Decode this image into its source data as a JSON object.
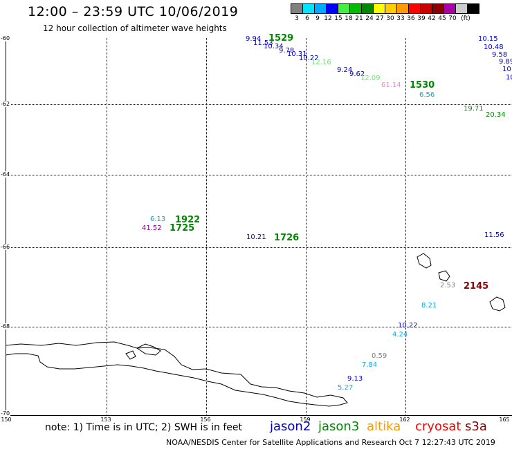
{
  "title": "12:00 – 23:59 UTC 10/06/2019",
  "subtitle": "12 hour collection of altimeter wave heights",
  "legend": {
    "colors": [
      "#808080",
      "#00e5ff",
      "#00aaff",
      "#0000ff",
      "#44ee44",
      "#00bb00",
      "#008800",
      "#ffff00",
      "#ffcc00",
      "#ff9900",
      "#ff0000",
      "#cc0000",
      "#880000",
      "#aa00aa",
      "#cccccc",
      "#000000"
    ],
    "labels": [
      "3",
      "6",
      "9",
      "12",
      "15",
      "18",
      "21",
      "24",
      "27",
      "30",
      "33",
      "36",
      "39",
      "42",
      "45",
      "70",
      "(ft)"
    ]
  },
  "axes": {
    "lat_labels": [
      "-60",
      "-62",
      "-64",
      "-66",
      "-68",
      "-70"
    ],
    "lon_labels": [
      "150",
      "153",
      "156",
      "159",
      "162",
      "165"
    ]
  },
  "observations": [
    {
      "value": "9.94",
      "color": "#0000cc"
    },
    {
      "value": "11.53",
      "color": "#0000cc"
    },
    {
      "value": "10.34",
      "color": "#0000cc"
    },
    {
      "value": "9.78",
      "color": "#0000cc"
    },
    {
      "value": "10.31",
      "color": "#0000cc"
    },
    {
      "value": "10.22",
      "color": "#0000cc"
    },
    {
      "value": "12.16",
      "color": "#66ee66"
    },
    {
      "value": "9.24",
      "color": "#0000cc"
    },
    {
      "value": "9.62",
      "color": "#0000cc"
    },
    {
      "value": "12.09",
      "color": "#66ee66"
    },
    {
      "value": "61.14",
      "color": "#ee88cc"
    },
    {
      "value": "6.56",
      "color": "#00aacc"
    },
    {
      "value": "19.71",
      "color": "#008800"
    },
    {
      "value": "20.34",
      "color": "#008800"
    },
    {
      "value": "10.15",
      "color": "#0000cc"
    },
    {
      "value": "10.48",
      "color": "#0000cc"
    },
    {
      "value": "9.58",
      "color": "#0000cc"
    },
    {
      "value": "9.89",
      "color": "#0000cc"
    },
    {
      "value": "10",
      "color": "#0000cc"
    },
    {
      "value": "10",
      "color": "#0000cc"
    },
    {
      "value": "6.13",
      "color": "#00aacc"
    },
    {
      "value": "41.52",
      "color": "#880088"
    },
    {
      "value": "10.21",
      "color": "#0000cc"
    },
    {
      "value": "11.56",
      "color": "#0000cc"
    },
    {
      "value": "2.53",
      "color": "#808080"
    },
    {
      "value": "8.21",
      "color": "#00aaee"
    },
    {
      "value": "10.22",
      "color": "#0000cc"
    },
    {
      "value": "4.24",
      "color": "#00aaee"
    },
    {
      "value": "0.59",
      "color": "#808080"
    },
    {
      "value": "7.84",
      "color": "#00aaee"
    },
    {
      "value": "9.13",
      "color": "#0000cc"
    },
    {
      "value": "5.27",
      "color": "#00aaee"
    }
  ],
  "pass_times": [
    {
      "time": "1529",
      "color": "#008800"
    },
    {
      "time": "1530",
      "color": "#008800"
    },
    {
      "time": "1922",
      "color": "#008800"
    },
    {
      "time": "1725",
      "color": "#008800"
    },
    {
      "time": "1726",
      "color": "#008800"
    },
    {
      "time": "2145",
      "color": "#880000"
    }
  ],
  "note": "note:  1) Time is in UTC;  2) SWH is in feet",
  "satellites": [
    {
      "name": "jason2",
      "color": "#0000cc"
    },
    {
      "name": "jason3",
      "color": "#008800"
    },
    {
      "name": "altika",
      "color": "#ff9900"
    },
    {
      "name": "cryosat",
      "color": "#ff0000"
    },
    {
      "name": "s3a",
      "color": "#880000"
    }
  ],
  "footer": "NOAA/NESDIS Center for Satellite Applications and Research    Oct  7 12:27:43 UTC 2019"
}
